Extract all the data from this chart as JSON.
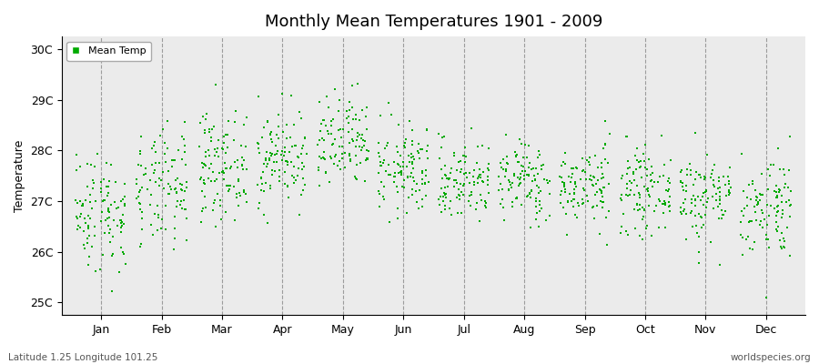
{
  "title": "Monthly Mean Temperatures 1901 - 2009",
  "ylabel": "Temperature",
  "xlabel_labels": [
    "Jan",
    "Feb",
    "Mar",
    "Apr",
    "May",
    "Jun",
    "Jul",
    "Aug",
    "Sep",
    "Oct",
    "Nov",
    "Dec"
  ],
  "ytick_labels": [
    "25C",
    "26C",
    "27C",
    "28C",
    "29C",
    "30C"
  ],
  "ytick_values": [
    25,
    26,
    27,
    28,
    29,
    30
  ],
  "ylim": [
    24.75,
    30.25
  ],
  "legend_label": "Mean Temp",
  "marker_color": "#00aa00",
  "background_color": "#ebebeb",
  "footer_left": "Latitude 1.25 Longitude 101.25",
  "footer_right": "worldspecies.org",
  "n_years": 109,
  "monthly_means": [
    26.8,
    27.2,
    27.7,
    27.85,
    28.1,
    27.6,
    27.4,
    27.4,
    27.3,
    27.2,
    27.1,
    26.9
  ],
  "monthly_stds": [
    0.6,
    0.58,
    0.52,
    0.48,
    0.48,
    0.45,
    0.4,
    0.4,
    0.4,
    0.4,
    0.45,
    0.52
  ],
  "seed": 42
}
